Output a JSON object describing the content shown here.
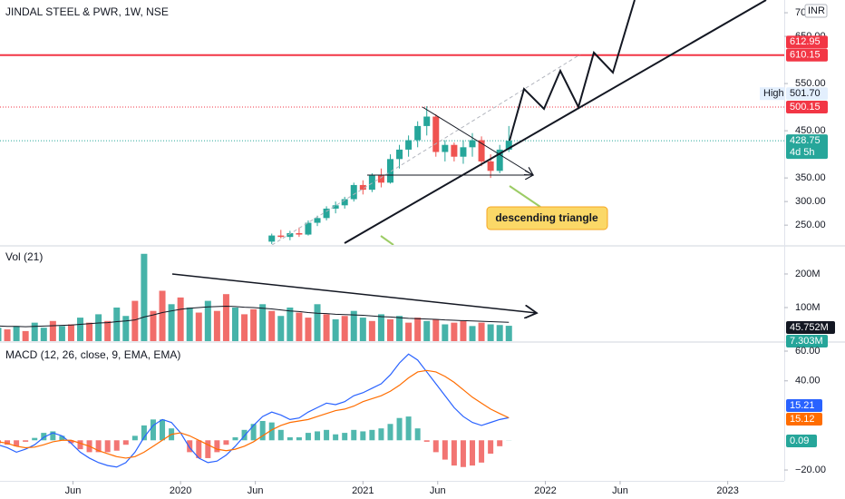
{
  "header": {
    "title": "JINDAL STEEL & PWR, 1W, NSE",
    "currency": "INR",
    "annotation": "descending triangle"
  },
  "chart_data": [
    {
      "type": "candlestick",
      "xlim": [
        2019.01,
        2023.31
      ],
      "x": [
        2020.5,
        2020.55,
        2020.6,
        2020.65,
        2020.7,
        2020.75,
        2020.8,
        2020.85,
        2020.9,
        2020.95,
        2021.0,
        2021.05,
        2021.1,
        2021.15,
        2021.2,
        2021.25,
        2021.3,
        2021.35,
        2021.4,
        2021.45,
        2021.5,
        2021.55,
        2021.6,
        2021.65,
        2021.7,
        2021.75,
        2021.8
      ],
      "open": [
        215,
        228,
        225,
        233,
        230,
        255,
        265,
        285,
        292,
        305,
        335,
        325,
        355,
        340,
        390,
        410,
        430,
        460,
        480,
        405,
        420,
        395,
        415,
        430,
        385,
        365,
        410
      ],
      "high": [
        232,
        240,
        238,
        245,
        260,
        270,
        290,
        300,
        310,
        340,
        345,
        360,
        370,
        400,
        420,
        440,
        470,
        502,
        485,
        430,
        425,
        430,
        445,
        438,
        400,
        420,
        460
      ],
      "low": [
        210,
        222,
        218,
        225,
        228,
        248,
        260,
        275,
        285,
        300,
        315,
        320,
        330,
        338,
        370,
        395,
        415,
        440,
        395,
        385,
        385,
        380,
        395,
        375,
        350,
        360,
        405
      ],
      "close": [
        228,
        225,
        233,
        230,
        255,
        265,
        285,
        292,
        305,
        335,
        325,
        355,
        340,
        390,
        410,
        430,
        460,
        480,
        405,
        420,
        395,
        415,
        430,
        385,
        365,
        410,
        428.75
      ],
      "up_color": "#26a69a",
      "down_color": "#ef5350",
      "ylim": [
        208,
        727
      ],
      "yticks": [
        {
          "value": 250,
          "label": "250.00"
        },
        {
          "value": 300,
          "label": "300.00"
        },
        {
          "value": 350,
          "label": "350.00"
        },
        {
          "value": 450,
          "label": "450.00"
        },
        {
          "value": 550,
          "label": "550.00"
        },
        {
          "value": 650,
          "label": "650.00"
        },
        {
          "value": 700,
          "label": "700.00"
        }
      ],
      "levels": [
        {
          "value": 610.15,
          "color": "#f23645",
          "style": "solid"
        },
        {
          "value": 500.15,
          "color": "#f23645",
          "style": "dotted"
        },
        {
          "value": 428.75,
          "color": "#26a69a",
          "style": "dotted"
        }
      ],
      "price_labels": [
        {
          "value": 612.95,
          "label": "612.95",
          "color": "#f23645"
        },
        {
          "value": 610.15,
          "label": "610.15",
          "color": "#f23645"
        },
        {
          "value": 501.7,
          "label": "501.70",
          "color": "#e3effd",
          "tag": "High"
        },
        {
          "value": 500.15,
          "label": "500.15",
          "color": "#f23645"
        }
      ],
      "countdown": "4d 5h"
    },
    {
      "type": "bar",
      "title": "Vol (21)",
      "xlim": [
        2019.01,
        2023.31
      ],
      "x": [
        2019.0,
        2019.05,
        2019.1,
        2019.15,
        2019.2,
        2019.25,
        2019.3,
        2019.35,
        2019.4,
        2019.45,
        2019.5,
        2019.55,
        2019.6,
        2019.65,
        2019.7,
        2019.75,
        2019.8,
        2019.85,
        2019.9,
        2019.95,
        2020.0,
        2020.05,
        2020.1,
        2020.15,
        2020.2,
        2020.25,
        2020.3,
        2020.35,
        2020.4,
        2020.45,
        2020.5,
        2020.55,
        2020.6,
        2020.65,
        2020.7,
        2020.75,
        2020.8,
        2020.85,
        2020.9,
        2020.95,
        2021.0,
        2021.05,
        2021.1,
        2021.15,
        2021.2,
        2021.25,
        2021.3,
        2021.35,
        2021.4,
        2021.45,
        2021.5,
        2021.55,
        2021.6,
        2021.65,
        2021.7,
        2021.75,
        2021.8
      ],
      "values": [
        40,
        35,
        45,
        30,
        55,
        40,
        60,
        45,
        50,
        70,
        55,
        80,
        60,
        100,
        75,
        120,
        260,
        90,
        150,
        110,
        130,
        100,
        85,
        120,
        90,
        140,
        100,
        80,
        95,
        110,
        90,
        75,
        100,
        85,
        70,
        110,
        80,
        65,
        75,
        90,
        70,
        60,
        80,
        65,
        75,
        55,
        70,
        60,
        65,
        50,
        55,
        60,
        45,
        55,
        50,
        48,
        45.752
      ],
      "colors": [
        "#26a69a",
        "#ef5350",
        "#26a69a",
        "#ef5350",
        "#26a69a",
        "#26a69a",
        "#ef5350",
        "#26a69a",
        "#ef5350",
        "#26a69a",
        "#ef5350",
        "#26a69a",
        "#ef5350",
        "#26a69a",
        "#26a69a",
        "#ef5350",
        "#26a69a",
        "#ef5350",
        "#ef5350",
        "#26a69a",
        "#ef5350",
        "#26a69a",
        "#ef5350",
        "#26a69a",
        "#ef5350",
        "#ef5350",
        "#26a69a",
        "#ef5350",
        "#ef5350",
        "#26a69a",
        "#ef5350",
        "#26a69a",
        "#26a69a",
        "#ef5350",
        "#ef5350",
        "#26a69a",
        "#ef5350",
        "#26a69a",
        "#ef5350",
        "#26a69a",
        "#26a69a",
        "#ef5350",
        "#26a69a",
        "#ef5350",
        "#26a69a",
        "#ef5350",
        "#ef5350",
        "#26a69a",
        "#ef5350",
        "#26a69a",
        "#ef5350",
        "#ef5350",
        "#26a69a",
        "#ef5350",
        "#26a69a",
        "#26a69a",
        "#26a69a"
      ],
      "ma": [
        45,
        44,
        44,
        43,
        44,
        45,
        46,
        47,
        48,
        50,
        52,
        54,
        55,
        58,
        60,
        63,
        72,
        78,
        85,
        90,
        95,
        98,
        100,
        102,
        103,
        104,
        103,
        101,
        100,
        98,
        96,
        93,
        90,
        88,
        85,
        83,
        82,
        80,
        79,
        78,
        77,
        75,
        73,
        72,
        70,
        68,
        67,
        66,
        65,
        63,
        62,
        61,
        60,
        59,
        58,
        57,
        56
      ],
      "ma_color": "#131722",
      "ylim": [
        0,
        281
      ],
      "yticks": [
        {
          "value": 100,
          "label": "100M"
        },
        {
          "value": 200,
          "label": "200M"
        }
      ],
      "last_labels": [
        "45.752M",
        "7.303M"
      ]
    },
    {
      "type": "macd",
      "title": "MACD (12, 26, close, 9, EMA, EMA)",
      "xlim": [
        2019.01,
        2023.31
      ],
      "x": [
        2019.0,
        2019.05,
        2019.1,
        2019.15,
        2019.2,
        2019.25,
        2019.3,
        2019.35,
        2019.4,
        2019.45,
        2019.5,
        2019.55,
        2019.6,
        2019.65,
        2019.7,
        2019.75,
        2019.8,
        2019.85,
        2019.9,
        2019.95,
        2020.0,
        2020.05,
        2020.1,
        2020.15,
        2020.2,
        2020.25,
        2020.3,
        2020.35,
        2020.4,
        2020.45,
        2020.5,
        2020.55,
        2020.6,
        2020.65,
        2020.7,
        2020.75,
        2020.8,
        2020.85,
        2020.9,
        2020.95,
        2021.0,
        2021.05,
        2021.1,
        2021.15,
        2021.2,
        2021.25,
        2021.3,
        2021.35,
        2021.4,
        2021.45,
        2021.5,
        2021.55,
        2021.6,
        2021.65,
        2021.7,
        2021.75,
        2021.8
      ],
      "series": [
        {
          "color": "#2962ff",
          "values": [
            -3,
            -5,
            -8,
            -6,
            -3,
            2,
            5,
            3,
            -2,
            -8,
            -12,
            -15,
            -17,
            -18,
            -15,
            -8,
            2,
            10,
            14,
            12,
            5,
            -5,
            -12,
            -15,
            -14,
            -10,
            -4,
            3,
            10,
            16,
            19,
            17,
            14,
            15,
            19,
            22,
            25,
            24,
            26,
            30,
            32,
            35,
            38,
            44,
            52,
            58,
            54,
            46,
            38,
            30,
            22,
            16,
            12,
            10,
            12,
            14,
            15.21
          ]
        },
        {
          "color": "#ff6d00",
          "values": [
            -1,
            -2,
            -4,
            -5,
            -4.6,
            -3,
            -1,
            0,
            0,
            -2,
            -4,
            -7,
            -9,
            -11,
            -12,
            -11,
            -8,
            -4,
            0,
            4,
            5,
            3,
            0,
            -3,
            -6,
            -7,
            -6,
            -4,
            -1,
            3,
            7,
            10,
            12,
            13,
            14,
            16,
            18,
            20,
            21,
            23,
            26,
            28,
            30,
            33,
            37,
            42,
            46,
            47,
            46,
            43,
            39,
            34,
            29,
            25,
            21,
            18,
            15.12
          ]
        }
      ],
      "histogram": [
        -2,
        -3,
        -4,
        -1,
        1.6,
        5,
        6,
        3,
        -2,
        -6,
        -8,
        -8,
        -8,
        -7,
        -3,
        3,
        10,
        14,
        14,
        8,
        0,
        -8,
        -12,
        -12,
        -8,
        -3,
        2,
        7,
        11,
        13,
        12,
        7,
        2,
        2,
        5,
        6,
        7,
        4,
        5,
        7,
        6,
        7,
        8,
        11,
        15,
        16,
        8,
        -1,
        -8,
        -13,
        -17,
        -18,
        -17,
        -15,
        -9,
        -4,
        0.09
      ],
      "up_color": "#26a69a",
      "down_color": "#ef5350",
      "ylim": [
        -27.3,
        65.5
      ],
      "yticks": [
        {
          "value": 60,
          "label": "60.00"
        },
        {
          "value": 40,
          "label": "40.00"
        },
        {
          "value": -20,
          "label": "−20.00"
        }
      ],
      "xticks": [
        {
          "value": 2019.41,
          "label": "Jun"
        },
        {
          "value": 2020.0,
          "label": "2020"
        },
        {
          "value": 2020.41,
          "label": "Jun"
        },
        {
          "value": 2021.0,
          "label": "2021"
        },
        {
          "value": 2021.41,
          "label": "Jun"
        },
        {
          "value": 2022.0,
          "label": "2022"
        },
        {
          "value": 2022.41,
          "label": "Jun"
        },
        {
          "value": 2023.0,
          "label": "2023"
        }
      ]
    }
  ]
}
